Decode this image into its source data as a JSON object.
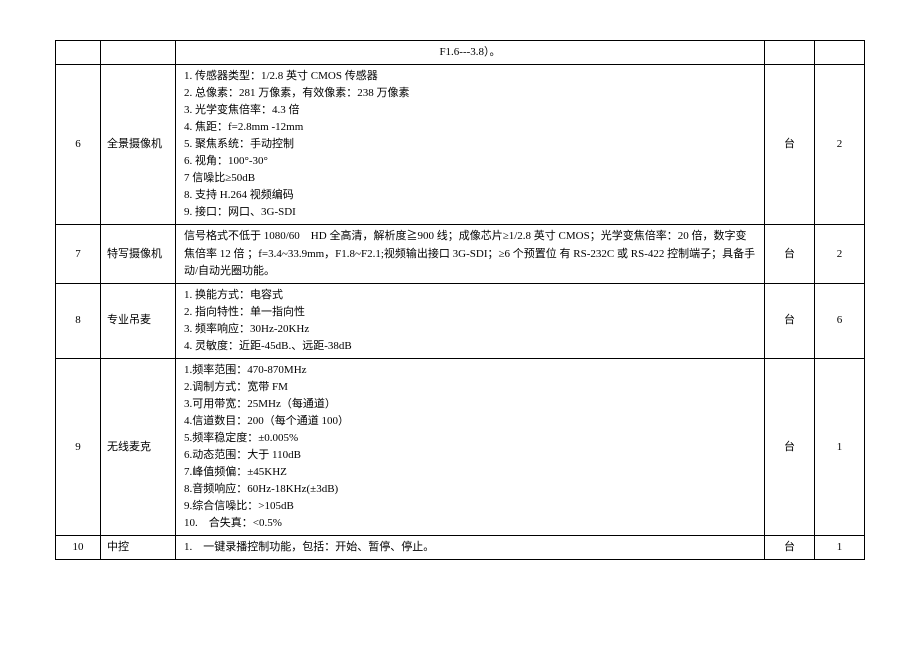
{
  "rows": [
    {
      "num": "",
      "name": "",
      "spec_center": true,
      "spec": [
        "F1.6---3.8）。"
      ],
      "unit": "",
      "qty": ""
    },
    {
      "num": "6",
      "name": "全景摄像机",
      "spec": [
        "1. 传感器类型：1/2.8 英寸 CMOS 传感器",
        "2. 总像素：281 万像素，有效像素：238 万像素",
        "3. 光学变焦倍率：4.3 倍",
        "4. 焦距：f=2.8mm -12mm",
        "5. 聚焦系统：手动控制",
        "6. 视角：100°-30°",
        "7 信噪比≥50dB",
        "8. 支持 H.264 视频编码",
        "9. 接口：网口、3G-SDI"
      ],
      "unit": "台",
      "qty": "2"
    },
    {
      "num": "7",
      "name": "特写摄像机",
      "spec": [
        "信号格式不低于 1080/60　HD 全高清，解析度≧900 线；成像芯片≥1/2.8 英寸 CMOS；光学变焦倍率：20 倍，数字变焦倍率 12 倍 ；f=3.4~33.9mm，F1.8~F2.1;视频输出接口 3G-SDI；≥6 个预置位 有 RS-232C 或 RS-422 控制端子；具备手动/自动光圈功能。"
      ],
      "unit": "台",
      "qty": "2"
    },
    {
      "num": "8",
      "name": "专业吊麦",
      "spec": [
        "1. 换能方式：电容式",
        "2. 指向特性：单一指向性",
        "3. 频率响应：30Hz-20KHz",
        "4. 灵敏度：近距-45dB.、远距-38dB"
      ],
      "unit": "台",
      "qty": "6"
    },
    {
      "num": "9",
      "name": "无线麦克",
      "spec": [
        "1.频率范围：470-870MHz",
        "2.调制方式：宽带 FM",
        "3.可用带宽：25MHz（每通道）",
        "4.信道数目：200（每个通道 100）",
        "5.频率稳定度：±0.005%",
        "6.动态范围：大于 110dB",
        "7.峰值频偏：±45KHZ",
        "8.音频响应：60Hz-18KHz(±3dB)",
        "9.综合信噪比：>105dB",
        "10.　合失真：<0.5%"
      ],
      "unit": "台",
      "qty": "1"
    },
    {
      "num": "10",
      "name": "中控",
      "spec": [
        "1.　一键录播控制功能，包括：开始、暂停、停止。"
      ],
      "unit": "台",
      "qty": "1"
    }
  ]
}
